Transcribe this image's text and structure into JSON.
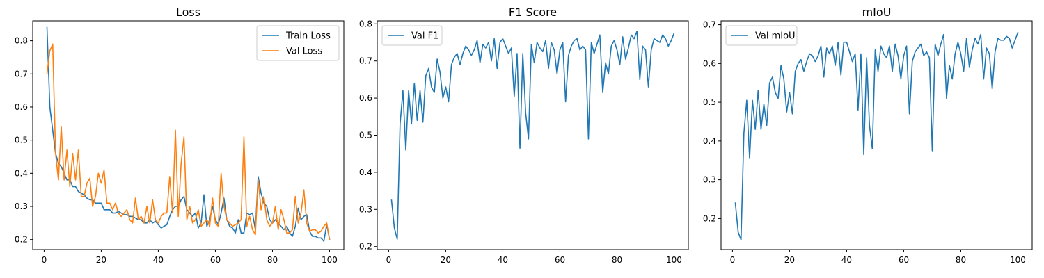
{
  "colors": {
    "blue": "#1f77b4",
    "orange": "#ff7f0e"
  },
  "chart_data": [
    {
      "type": "line",
      "title": "Loss",
      "xlabel": "",
      "ylabel": "",
      "xlim": [
        -4,
        105
      ],
      "ylim": [
        0.17,
        0.86
      ],
      "xticks": [
        0,
        20,
        40,
        60,
        80,
        100
      ],
      "yticks": [
        0.2,
        0.3,
        0.4,
        0.5,
        0.6,
        0.7,
        0.8
      ],
      "grid": false,
      "legend_position": "top-right",
      "series": [
        {
          "name": "Train Loss",
          "color": "#1f77b4",
          "x": [
            1,
            2,
            3,
            4,
            5,
            6,
            7,
            8,
            9,
            10,
            11,
            12,
            13,
            14,
            15,
            16,
            17,
            18,
            19,
            20,
            21,
            22,
            23,
            24,
            25,
            26,
            27,
            28,
            29,
            30,
            31,
            32,
            33,
            34,
            35,
            36,
            37,
            38,
            39,
            40,
            41,
            42,
            43,
            44,
            45,
            46,
            47,
            48,
            49,
            50,
            51,
            52,
            53,
            54,
            55,
            56,
            57,
            58,
            59,
            60,
            61,
            62,
            63,
            64,
            65,
            66,
            67,
            68,
            69,
            70,
            71,
            72,
            73,
            74,
            75,
            76,
            77,
            78,
            79,
            80,
            81,
            82,
            83,
            84,
            85,
            86,
            87,
            88,
            89,
            90,
            91,
            92,
            93,
            94,
            95,
            96,
            97,
            98,
            99,
            100
          ],
          "values": [
            0.84,
            0.6,
            0.53,
            0.46,
            0.43,
            0.42,
            0.4,
            0.38,
            0.38,
            0.36,
            0.36,
            0.345,
            0.34,
            0.335,
            0.325,
            0.32,
            0.32,
            0.31,
            0.31,
            0.31,
            0.29,
            0.29,
            0.29,
            0.28,
            0.28,
            0.285,
            0.28,
            0.275,
            0.275,
            0.27,
            0.27,
            0.265,
            0.26,
            0.26,
            0.25,
            0.25,
            0.26,
            0.25,
            0.255,
            0.245,
            0.235,
            0.24,
            0.245,
            0.27,
            0.29,
            0.3,
            0.3,
            0.32,
            0.33,
            0.29,
            0.28,
            0.27,
            0.28,
            0.235,
            0.25,
            0.335,
            0.24,
            0.26,
            0.3,
            0.26,
            0.245,
            0.28,
            0.325,
            0.26,
            0.24,
            0.235,
            0.22,
            0.26,
            0.22,
            0.22,
            0.28,
            0.275,
            0.28,
            0.23,
            0.39,
            0.34,
            0.31,
            0.3,
            0.26,
            0.25,
            0.26,
            0.25,
            0.24,
            0.23,
            0.24,
            0.22,
            0.21,
            0.24,
            0.295,
            0.26,
            0.27,
            0.275,
            0.225,
            0.21,
            0.21,
            0.205,
            0.205,
            0.195,
            0.245,
            0.2
          ]
        },
        {
          "name": "Val Loss",
          "color": "#ff7f0e",
          "x": [
            1,
            2,
            3,
            4,
            5,
            6,
            7,
            8,
            9,
            10,
            11,
            12,
            13,
            14,
            15,
            16,
            17,
            18,
            19,
            20,
            21,
            22,
            23,
            24,
            25,
            26,
            27,
            28,
            29,
            30,
            31,
            32,
            33,
            34,
            35,
            36,
            37,
            38,
            39,
            40,
            41,
            42,
            43,
            44,
            45,
            46,
            47,
            48,
            49,
            50,
            51,
            52,
            53,
            54,
            55,
            56,
            57,
            58,
            59,
            60,
            61,
            62,
            63,
            64,
            65,
            66,
            67,
            68,
            69,
            70,
            71,
            72,
            73,
            74,
            75,
            76,
            77,
            78,
            79,
            80,
            81,
            82,
            83,
            84,
            85,
            86,
            87,
            88,
            89,
            90,
            91,
            92,
            93,
            94,
            95,
            96,
            97,
            98,
            99,
            100
          ],
          "values": [
            0.7,
            0.77,
            0.79,
            0.46,
            0.38,
            0.54,
            0.38,
            0.47,
            0.36,
            0.46,
            0.38,
            0.47,
            0.33,
            0.33,
            0.37,
            0.385,
            0.3,
            0.33,
            0.4,
            0.37,
            0.41,
            0.31,
            0.31,
            0.29,
            0.31,
            0.28,
            0.27,
            0.28,
            0.29,
            0.26,
            0.25,
            0.325,
            0.26,
            0.27,
            0.25,
            0.3,
            0.25,
            0.32,
            0.26,
            0.25,
            0.27,
            0.28,
            0.28,
            0.39,
            0.28,
            0.53,
            0.27,
            0.43,
            0.51,
            0.26,
            0.3,
            0.25,
            0.26,
            0.29,
            0.24,
            0.25,
            0.26,
            0.24,
            0.325,
            0.25,
            0.24,
            0.4,
            0.3,
            0.26,
            0.25,
            0.24,
            0.245,
            0.25,
            0.26,
            0.51,
            0.24,
            0.27,
            0.23,
            0.215,
            0.38,
            0.29,
            0.33,
            0.26,
            0.24,
            0.25,
            0.3,
            0.23,
            0.29,
            0.26,
            0.22,
            0.22,
            0.23,
            0.33,
            0.25,
            0.28,
            0.35,
            0.25,
            0.225,
            0.23,
            0.23,
            0.22,
            0.225,
            0.24,
            0.25,
            0.2
          ]
        }
      ]
    },
    {
      "type": "line",
      "title": "F1 Score",
      "xlabel": "",
      "ylabel": "",
      "xlim": [
        -4,
        105
      ],
      "ylim": [
        0.192,
        0.808
      ],
      "xticks": [
        0,
        20,
        40,
        60,
        80,
        100
      ],
      "yticks": [
        0.2,
        0.3,
        0.4,
        0.5,
        0.6,
        0.7,
        0.8
      ],
      "grid": false,
      "legend_position": "top-left",
      "series": [
        {
          "name": "Val F1",
          "color": "#1f77b4",
          "x": [
            1,
            2,
            3,
            4,
            5,
            6,
            7,
            8,
            9,
            10,
            11,
            12,
            13,
            14,
            15,
            16,
            17,
            18,
            19,
            20,
            21,
            22,
            23,
            24,
            25,
            26,
            27,
            28,
            29,
            30,
            31,
            32,
            33,
            34,
            35,
            36,
            37,
            38,
            39,
            40,
            41,
            42,
            43,
            44,
            45,
            46,
            47,
            48,
            49,
            50,
            51,
            52,
            53,
            54,
            55,
            56,
            57,
            58,
            59,
            60,
            61,
            62,
            63,
            64,
            65,
            66,
            67,
            68,
            69,
            70,
            71,
            72,
            73,
            74,
            75,
            76,
            77,
            78,
            79,
            80,
            81,
            82,
            83,
            84,
            85,
            86,
            87,
            88,
            89,
            90,
            91,
            92,
            93,
            94,
            95,
            96,
            97,
            98,
            99,
            100
          ],
          "values": [
            0.325,
            0.25,
            0.22,
            0.53,
            0.62,
            0.46,
            0.62,
            0.53,
            0.64,
            0.54,
            0.62,
            0.535,
            0.66,
            0.68,
            0.63,
            0.615,
            0.705,
            0.67,
            0.6,
            0.63,
            0.59,
            0.69,
            0.71,
            0.72,
            0.69,
            0.72,
            0.74,
            0.73,
            0.715,
            0.73,
            0.755,
            0.695,
            0.745,
            0.735,
            0.75,
            0.7,
            0.76,
            0.68,
            0.75,
            0.76,
            0.74,
            0.72,
            0.735,
            0.605,
            0.72,
            0.465,
            0.72,
            0.56,
            0.49,
            0.745,
            0.695,
            0.75,
            0.735,
            0.725,
            0.755,
            0.68,
            0.75,
            0.73,
            0.665,
            0.73,
            0.75,
            0.59,
            0.715,
            0.74,
            0.755,
            0.76,
            0.73,
            0.74,
            0.73,
            0.49,
            0.75,
            0.72,
            0.745,
            0.77,
            0.615,
            0.695,
            0.665,
            0.74,
            0.755,
            0.73,
            0.69,
            0.765,
            0.705,
            0.735,
            0.77,
            0.76,
            0.78,
            0.65,
            0.74,
            0.73,
            0.63,
            0.73,
            0.76,
            0.755,
            0.75,
            0.77,
            0.76,
            0.74,
            0.755,
            0.775
          ]
        }
      ]
    },
    {
      "type": "line",
      "title": "mIoU",
      "xlabel": "",
      "ylabel": "",
      "xlim": [
        -4,
        105
      ],
      "ylim": [
        0.12,
        0.71
      ],
      "xticks": [
        0,
        20,
        40,
        60,
        80,
        100
      ],
      "yticks": [
        0.2,
        0.3,
        0.4,
        0.5,
        0.6,
        0.7
      ],
      "grid": false,
      "legend_position": "top-left",
      "series": [
        {
          "name": "Val mIoU",
          "color": "#1f77b4",
          "x": [
            1,
            2,
            3,
            4,
            5,
            6,
            7,
            8,
            9,
            10,
            11,
            12,
            13,
            14,
            15,
            16,
            17,
            18,
            19,
            20,
            21,
            22,
            23,
            24,
            25,
            26,
            27,
            28,
            29,
            30,
            31,
            32,
            33,
            34,
            35,
            36,
            37,
            38,
            39,
            40,
            41,
            42,
            43,
            44,
            45,
            46,
            47,
            48,
            49,
            50,
            51,
            52,
            53,
            54,
            55,
            56,
            57,
            58,
            59,
            60,
            61,
            62,
            63,
            64,
            65,
            66,
            67,
            68,
            69,
            70,
            71,
            72,
            73,
            74,
            75,
            76,
            77,
            78,
            79,
            80,
            81,
            82,
            83,
            84,
            85,
            86,
            87,
            88,
            89,
            90,
            91,
            92,
            93,
            94,
            95,
            96,
            97,
            98,
            99,
            100
          ],
          "values": [
            0.24,
            0.165,
            0.145,
            0.42,
            0.505,
            0.355,
            0.505,
            0.43,
            0.53,
            0.43,
            0.495,
            0.44,
            0.55,
            0.565,
            0.525,
            0.51,
            0.595,
            0.56,
            0.475,
            0.525,
            0.47,
            0.58,
            0.6,
            0.61,
            0.58,
            0.605,
            0.625,
            0.62,
            0.605,
            0.62,
            0.645,
            0.565,
            0.64,
            0.625,
            0.645,
            0.595,
            0.655,
            0.57,
            0.655,
            0.655,
            0.63,
            0.605,
            0.625,
            0.48,
            0.625,
            0.365,
            0.615,
            0.44,
            0.38,
            0.635,
            0.58,
            0.645,
            0.625,
            0.615,
            0.645,
            0.58,
            0.65,
            0.62,
            0.56,
            0.62,
            0.645,
            0.47,
            0.605,
            0.63,
            0.64,
            0.65,
            0.62,
            0.63,
            0.615,
            0.375,
            0.65,
            0.62,
            0.65,
            0.675,
            0.51,
            0.595,
            0.56,
            0.625,
            0.655,
            0.625,
            0.58,
            0.665,
            0.59,
            0.635,
            0.665,
            0.65,
            0.675,
            0.56,
            0.64,
            0.625,
            0.535,
            0.63,
            0.665,
            0.66,
            0.66,
            0.67,
            0.665,
            0.64,
            0.66,
            0.68
          ]
        }
      ]
    }
  ]
}
